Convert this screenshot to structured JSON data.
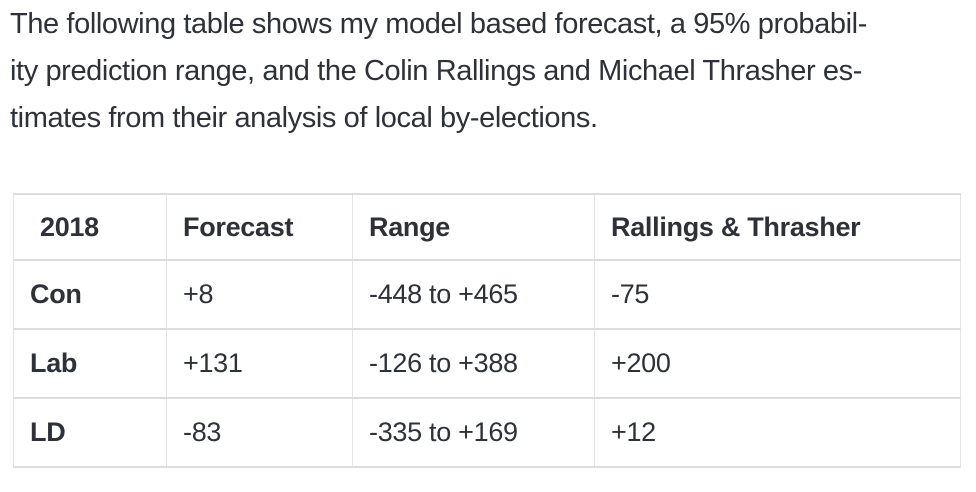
{
  "colors": {
    "text": "#2e3138",
    "border_horizontal": "#dcdcdc",
    "border_vertical": "#e3e3e3",
    "background": "#ffffff"
  },
  "paragraph": {
    "full_text": "The following table shows my model based forecast, a 95% probability prediction range, and the Colin Rallings and Michael Thrasher estimates from their analysis of local by-elections.",
    "lines": [
      "The following table shows my model based forecast, a 95% probabil-",
      "ity prediction range, and the Colin Rallings and Michael Thrasher es-",
      "timates from their analysis of local by-elections."
    ]
  },
  "table": {
    "headers": [
      "2018",
      "Forecast",
      "Range",
      "Rallings & Thrasher"
    ],
    "rows": [
      {
        "cells": [
          "Con",
          "+8",
          "-448 to +465",
          "-75"
        ]
      },
      {
        "cells": [
          "Lab",
          "+131",
          "-126 to +388",
          "+200"
        ]
      },
      {
        "cells": [
          "LD",
          "-83",
          "-335 to +169",
          "+12"
        ]
      }
    ]
  }
}
